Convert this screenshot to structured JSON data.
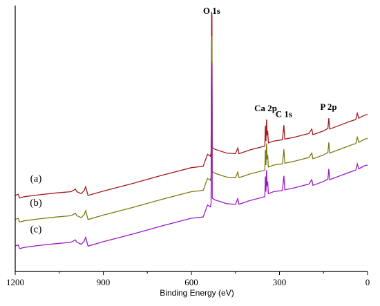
{
  "chart_data": {
    "type": "line",
    "xlabel": "Binding Energy (eV)",
    "ylabel": "",
    "x_reversed": true,
    "xlim": [
      1200,
      0
    ],
    "xticks": [
      1200,
      900,
      600,
      300,
      0
    ],
    "grid": false,
    "series": [
      {
        "name": "(a)",
        "color": "#a01818",
        "points": [
          [
            1200,
            120
          ],
          [
            1190,
            122
          ],
          [
            1185,
            116
          ],
          [
            1170,
            118
          ],
          [
            1120,
            121
          ],
          [
            1060,
            124
          ],
          [
            1010,
            126
          ],
          [
            995,
            130
          ],
          [
            990,
            126
          ],
          [
            975,
            123
          ],
          [
            965,
            128
          ],
          [
            960,
            134
          ],
          [
            952,
            120
          ],
          [
            900,
            127
          ],
          [
            800,
            139
          ],
          [
            700,
            152
          ],
          [
            600,
            164
          ],
          [
            560,
            166
          ],
          [
            545,
            185
          ],
          [
            535,
            182
          ],
          [
            533,
            188
          ],
          [
            531,
            410
          ],
          [
            530,
            405
          ],
          [
            529,
            196
          ],
          [
            520,
            193
          ],
          [
            480,
            187
          ],
          [
            450,
            186
          ],
          [
            442,
            195
          ],
          [
            438,
            186
          ],
          [
            400,
            192
          ],
          [
            350,
            198
          ],
          [
            348,
            230
          ],
          [
            346,
            206
          ],
          [
            344,
            240
          ],
          [
            342,
            215
          ],
          [
            340,
            222
          ],
          [
            338,
            203
          ],
          [
            320,
            206
          ],
          [
            290,
            208
          ],
          [
            285,
            231
          ],
          [
            282,
            209
          ],
          [
            250,
            212
          ],
          [
            200,
            218
          ],
          [
            190,
            225
          ],
          [
            186,
            216
          ],
          [
            150,
            222
          ],
          [
            135,
            226
          ],
          [
            132,
            242
          ],
          [
            129,
            225
          ],
          [
            100,
            230
          ],
          [
            60,
            237
          ],
          [
            40,
            240
          ],
          [
            35,
            250
          ],
          [
            30,
            242
          ],
          [
            10,
            247
          ],
          [
            0,
            248
          ]
        ]
      },
      {
        "name": "(b)",
        "color": "#7a7a10",
        "points": [
          [
            1200,
            82
          ],
          [
            1190,
            84
          ],
          [
            1185,
            78
          ],
          [
            1170,
            80
          ],
          [
            1120,
            83
          ],
          [
            1060,
            86
          ],
          [
            1010,
            88
          ],
          [
            995,
            92
          ],
          [
            990,
            88
          ],
          [
            975,
            85
          ],
          [
            965,
            90
          ],
          [
            960,
            96
          ],
          [
            952,
            82
          ],
          [
            900,
            89
          ],
          [
            800,
            101
          ],
          [
            700,
            114
          ],
          [
            600,
            126
          ],
          [
            560,
            128
          ],
          [
            545,
            147
          ],
          [
            535,
            144
          ],
          [
            533,
            150
          ],
          [
            531,
            372
          ],
          [
            530,
            367
          ],
          [
            529,
            158
          ],
          [
            520,
            155
          ],
          [
            480,
            149
          ],
          [
            450,
            148
          ],
          [
            442,
            157
          ],
          [
            438,
            148
          ],
          [
            400,
            154
          ],
          [
            350,
            160
          ],
          [
            348,
            192
          ],
          [
            346,
            168
          ],
          [
            344,
            202
          ],
          [
            342,
            177
          ],
          [
            340,
            184
          ],
          [
            338,
            165
          ],
          [
            320,
            168
          ],
          [
            290,
            170
          ],
          [
            285,
            193
          ],
          [
            282,
            171
          ],
          [
            250,
            174
          ],
          [
            200,
            180
          ],
          [
            190,
            187
          ],
          [
            186,
            178
          ],
          [
            150,
            184
          ],
          [
            135,
            188
          ],
          [
            132,
            204
          ],
          [
            129,
            187
          ],
          [
            100,
            192
          ],
          [
            60,
            199
          ],
          [
            40,
            202
          ],
          [
            35,
            212
          ],
          [
            30,
            204
          ],
          [
            10,
            209
          ],
          [
            0,
            210
          ]
        ]
      },
      {
        "name": "(c)",
        "color": "#9a18c8",
        "points": [
          [
            1200,
            40
          ],
          [
            1190,
            42
          ],
          [
            1185,
            36
          ],
          [
            1170,
            38
          ],
          [
            1120,
            41
          ],
          [
            1060,
            44
          ],
          [
            1010,
            46
          ],
          [
            995,
            50
          ],
          [
            990,
            46
          ],
          [
            975,
            43
          ],
          [
            965,
            48
          ],
          [
            960,
            54
          ],
          [
            952,
            40
          ],
          [
            900,
            47
          ],
          [
            800,
            59
          ],
          [
            700,
            72
          ],
          [
            600,
            84
          ],
          [
            560,
            86
          ],
          [
            545,
            105
          ],
          [
            535,
            102
          ],
          [
            533,
            108
          ],
          [
            531,
            330
          ],
          [
            530,
            325
          ],
          [
            529,
            116
          ],
          [
            520,
            113
          ],
          [
            480,
            107
          ],
          [
            450,
            106
          ],
          [
            442,
            115
          ],
          [
            438,
            106
          ],
          [
            400,
            112
          ],
          [
            350,
            118
          ],
          [
            348,
            150
          ],
          [
            346,
            126
          ],
          [
            344,
            160
          ],
          [
            342,
            135
          ],
          [
            340,
            142
          ],
          [
            338,
            123
          ],
          [
            320,
            126
          ],
          [
            290,
            128
          ],
          [
            285,
            151
          ],
          [
            282,
            129
          ],
          [
            250,
            132
          ],
          [
            200,
            138
          ],
          [
            190,
            145
          ],
          [
            186,
            136
          ],
          [
            150,
            142
          ],
          [
            135,
            146
          ],
          [
            132,
            162
          ],
          [
            129,
            145
          ],
          [
            100,
            150
          ],
          [
            60,
            157
          ],
          [
            40,
            160
          ],
          [
            35,
            170
          ],
          [
            30,
            162
          ],
          [
            10,
            167
          ],
          [
            0,
            168
          ]
        ]
      }
    ],
    "annotations": [
      {
        "text": "O 1s",
        "x": 531
      },
      {
        "text": "Ca 2p",
        "x": 347
      },
      {
        "text": "C 1s",
        "x": 285
      },
      {
        "text": "P 2p",
        "x": 133
      }
    ]
  }
}
